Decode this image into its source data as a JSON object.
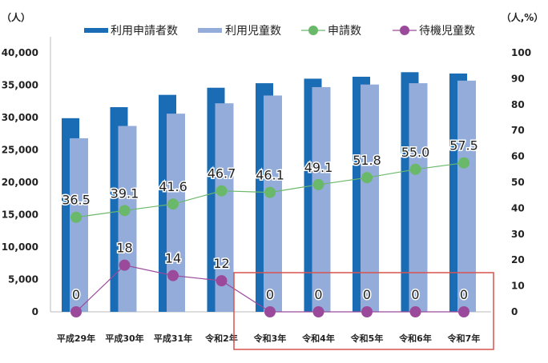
{
  "chart_data": {
    "type": "bar",
    "categories": [
      "平成29年",
      "平成30年",
      "平成31年",
      "令和2年",
      "令和3年",
      "令和4年",
      "令和5年",
      "令和6年",
      "令和7年"
    ],
    "series": [
      {
        "name": "利用申請者数",
        "type": "bar",
        "axis": "left",
        "color": "#1a6cb5",
        "values": [
          29900,
          31600,
          33500,
          34600,
          35300,
          36000,
          36300,
          37000,
          36800
        ]
      },
      {
        "name": "利用児童数",
        "type": "bar",
        "axis": "left",
        "color": "#94acd9",
        "values": [
          26800,
          28700,
          30600,
          32200,
          33400,
          34700,
          35100,
          35300,
          35700
        ]
      },
      {
        "name": "申請数",
        "type": "line",
        "axis": "right",
        "color": "#6ab86a",
        "values": [
          36.5,
          39.1,
          41.6,
          46.7,
          46.1,
          49.1,
          51.8,
          55.0,
          57.5
        ],
        "labels": [
          "36.5",
          "39.1",
          "41.6",
          "46.7",
          "46.1",
          "49.1",
          "51.8",
          "55.0",
          "57.5"
        ]
      },
      {
        "name": "待機児童数",
        "type": "line",
        "axis": "right",
        "color": "#9b4a9b",
        "values": [
          0,
          18,
          14,
          12,
          0,
          0,
          0,
          0,
          0
        ],
        "labels": [
          "0",
          "18",
          "14",
          "12",
          "0",
          "0",
          "0",
          "0",
          "0"
        ]
      }
    ],
    "left_axis": {
      "unit": "（人）",
      "ylim": [
        0,
        40000
      ],
      "ticks": [
        0,
        5000,
        10000,
        15000,
        20000,
        25000,
        30000,
        35000,
        40000
      ],
      "tick_labels": [
        "0",
        "5,000",
        "10,000",
        "15,000",
        "20,000",
        "25,000",
        "30,000",
        "35,000",
        "40,000"
      ]
    },
    "right_axis": {
      "unit": "（人,%）",
      "ylim": [
        0,
        100
      ],
      "ticks": [
        0,
        10,
        20,
        30,
        40,
        50,
        60,
        70,
        80,
        90,
        100
      ],
      "tick_labels": [
        "0",
        "10",
        "20",
        "30",
        "40",
        "50",
        "60",
        "70",
        "80",
        "90",
        "100"
      ]
    },
    "legend_position": "top",
    "highlight": {
      "from_category": "令和3年",
      "to_category": "令和7年",
      "color": "#d9534f"
    },
    "grid": false
  }
}
